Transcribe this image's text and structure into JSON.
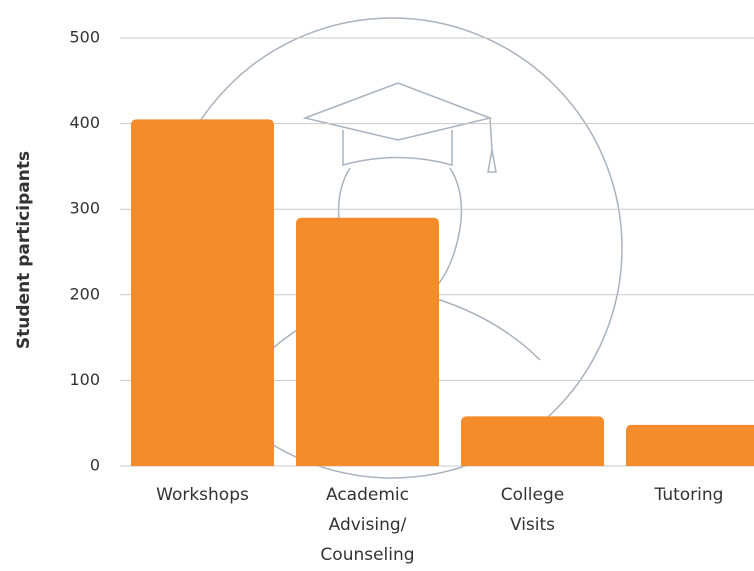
{
  "chart_data": {
    "type": "bar",
    "ylabel": "Student participants",
    "categories": [
      "Workshops",
      "Academic Advising/ Counseling",
      "College Visits",
      "Tutoring"
    ],
    "values": [
      405,
      290,
      58,
      48
    ],
    "color": "#f48c2c",
    "ylim": [
      0,
      500
    ],
    "yticks": [
      0,
      100,
      200,
      300,
      400,
      500
    ],
    "grid": true
  }
}
